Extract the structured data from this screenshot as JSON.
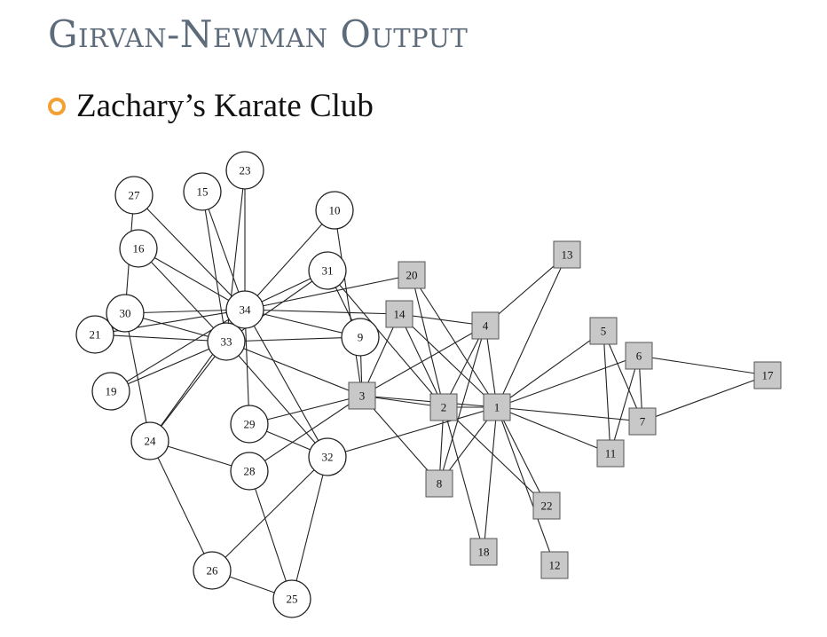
{
  "slide": {
    "title": "Girvan-Newman Output",
    "bullet": "Zachary’s Karate Club"
  },
  "colors": {
    "title": "#5d6b7a",
    "bullet": "#f5a033",
    "community_a_fill": "#ffffff",
    "community_b_fill": "#c8c8c8"
  },
  "graph": {
    "community_a": [
      "9",
      "10",
      "15",
      "16",
      "19",
      "21",
      "23",
      "24",
      "25",
      "26",
      "27",
      "28",
      "29",
      "30",
      "31",
      "32",
      "33",
      "34"
    ],
    "community_b": [
      "1",
      "2",
      "3",
      "4",
      "5",
      "6",
      "7",
      "8",
      "11",
      "12",
      "13",
      "14",
      "17",
      "18",
      "20",
      "22"
    ],
    "edges": [
      [
        "1",
        "2"
      ],
      [
        "1",
        "3"
      ],
      [
        "1",
        "4"
      ],
      [
        "1",
        "5"
      ],
      [
        "1",
        "6"
      ],
      [
        "1",
        "7"
      ],
      [
        "1",
        "8"
      ],
      [
        "1",
        "11"
      ],
      [
        "1",
        "12"
      ],
      [
        "1",
        "13"
      ],
      [
        "1",
        "14"
      ],
      [
        "1",
        "18"
      ],
      [
        "1",
        "20"
      ],
      [
        "1",
        "22"
      ],
      [
        "1",
        "32"
      ],
      [
        "2",
        "3"
      ],
      [
        "2",
        "4"
      ],
      [
        "2",
        "8"
      ],
      [
        "2",
        "14"
      ],
      [
        "2",
        "18"
      ],
      [
        "2",
        "20"
      ],
      [
        "2",
        "22"
      ],
      [
        "2",
        "31"
      ],
      [
        "3",
        "4"
      ],
      [
        "3",
        "8"
      ],
      [
        "3",
        "9"
      ],
      [
        "3",
        "10"
      ],
      [
        "3",
        "14"
      ],
      [
        "3",
        "28"
      ],
      [
        "3",
        "29"
      ],
      [
        "3",
        "33"
      ],
      [
        "4",
        "8"
      ],
      [
        "4",
        "13"
      ],
      [
        "4",
        "14"
      ],
      [
        "5",
        "7"
      ],
      [
        "5",
        "11"
      ],
      [
        "6",
        "7"
      ],
      [
        "6",
        "11"
      ],
      [
        "6",
        "17"
      ],
      [
        "7",
        "17"
      ],
      [
        "9",
        "31"
      ],
      [
        "9",
        "33"
      ],
      [
        "9",
        "34"
      ],
      [
        "10",
        "34"
      ],
      [
        "14",
        "34"
      ],
      [
        "15",
        "33"
      ],
      [
        "15",
        "34"
      ],
      [
        "16",
        "33"
      ],
      [
        "16",
        "34"
      ],
      [
        "19",
        "33"
      ],
      [
        "19",
        "34"
      ],
      [
        "20",
        "34"
      ],
      [
        "21",
        "33"
      ],
      [
        "21",
        "34"
      ],
      [
        "23",
        "33"
      ],
      [
        "23",
        "34"
      ],
      [
        "24",
        "26"
      ],
      [
        "24",
        "28"
      ],
      [
        "24",
        "30"
      ],
      [
        "24",
        "33"
      ],
      [
        "24",
        "34"
      ],
      [
        "25",
        "26"
      ],
      [
        "25",
        "28"
      ],
      [
        "25",
        "32"
      ],
      [
        "26",
        "32"
      ],
      [
        "27",
        "30"
      ],
      [
        "27",
        "34"
      ],
      [
        "29",
        "32"
      ],
      [
        "29",
        "34"
      ],
      [
        "30",
        "33"
      ],
      [
        "30",
        "34"
      ],
      [
        "31",
        "33"
      ],
      [
        "31",
        "34"
      ],
      [
        "32",
        "33"
      ],
      [
        "32",
        "34"
      ],
      [
        "33",
        "34"
      ]
    ]
  }
}
